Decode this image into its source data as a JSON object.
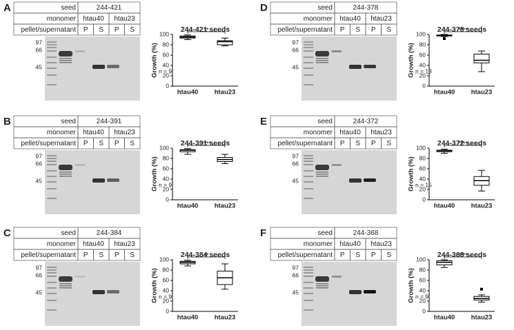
{
  "panels": [
    {
      "letter": "A",
      "table": {
        "rows": [
          [
            "seed",
            "244-421"
          ],
          [
            "monomer",
            "htau40",
            "htau23"
          ],
          [
            "pellet/supernatant",
            "P",
            "S",
            "P",
            "S"
          ]
        ]
      },
      "markers": [
        97,
        66,
        45
      ]
    },
    {
      "letter": "B",
      "table": {
        "rows": [
          [
            "seed",
            "244-391"
          ],
          [
            "monomer",
            "htau40",
            "htau23"
          ],
          [
            "pellet/supernatant",
            "P",
            "S",
            "P",
            "S"
          ]
        ]
      },
      "markers": [
        97,
        66,
        45
      ]
    },
    {
      "letter": "C",
      "table": {
        "rows": [
          [
            "seed",
            "244-384"
          ],
          [
            "monomer",
            "htau40",
            "htau23"
          ],
          [
            "pellet/supernatant",
            "P",
            "S",
            "P",
            "S"
          ]
        ]
      },
      "markers": [
        97,
        66,
        45
      ]
    },
    {
      "letter": "D",
      "table": {
        "rows": [
          [
            "seed",
            "244-378"
          ],
          [
            "monomer",
            "htau40",
            "htau23"
          ],
          [
            "pellet/supernatant",
            "P",
            "S",
            "P",
            "S"
          ]
        ]
      },
      "markers": [
        97,
        66,
        45
      ]
    },
    {
      "letter": "E",
      "table": {
        "rows": [
          [
            "seed",
            "244-372"
          ],
          [
            "monomer",
            "htau40",
            "htau23"
          ],
          [
            "pellet/supernatant",
            "P",
            "S",
            "P",
            "S"
          ]
        ]
      },
      "markers": [
        97,
        66,
        45
      ]
    },
    {
      "letter": "F",
      "table": {
        "rows": [
          [
            "seed",
            "244-368"
          ],
          [
            "monomer",
            "htau40",
            "htau23"
          ],
          [
            "pellet/supernatant",
            "P",
            "S",
            "P",
            "S"
          ]
        ]
      },
      "markers": [
        97,
        66,
        45
      ]
    }
  ],
  "chart_data": [
    {
      "type": "box",
      "title": "244-421 seeds",
      "ylabel": "Growth (%)",
      "categories": [
        "htau40",
        "htau23"
      ],
      "boxes": [
        {
          "min": 90,
          "q1": 93,
          "median": 95,
          "q3": 97,
          "max": 99,
          "outliers": []
        },
        {
          "min": 78,
          "q1": 80,
          "median": 86,
          "q3": 88,
          "max": 93,
          "outliers": []
        }
      ],
      "ylim": [
        0,
        100
      ],
      "yticks": [
        0,
        20,
        40,
        60,
        80,
        100
      ],
      "n_label": "n = 9",
      "significance": "**"
    },
    {
      "type": "box",
      "title": "244-391 seeds",
      "ylabel": "Growth (%)",
      "categories": [
        "htau40",
        "htau23"
      ],
      "boxes": [
        {
          "min": 88,
          "q1": 93,
          "median": 96,
          "q3": 97,
          "max": 99,
          "outliers": []
        },
        {
          "min": 70,
          "q1": 74,
          "median": 78,
          "q3": 82,
          "max": 88,
          "outliers": []
        }
      ],
      "ylim": [
        0,
        100
      ],
      "yticks": [
        0,
        20,
        40,
        60,
        80,
        100
      ],
      "n_label": "n = 9",
      "significance": "****"
    },
    {
      "type": "box",
      "title": "244-384 seeds",
      "ylabel": "Growth (%)",
      "categories": [
        "htau40",
        "htau23"
      ],
      "boxes": [
        {
          "min": 88,
          "q1": 92,
          "median": 95,
          "q3": 97,
          "max": 99,
          "outliers": []
        },
        {
          "min": 43,
          "q1": 52,
          "median": 65,
          "q3": 78,
          "max": 92,
          "outliers": []
        }
      ],
      "ylim": [
        0,
        100
      ],
      "yticks": [
        0,
        20,
        40,
        60,
        80,
        100
      ],
      "n_label": "n = 9",
      "significance": "**"
    },
    {
      "type": "box",
      "title": "244-378 seeds",
      "ylabel": "Growth (%)",
      "categories": [
        "htau40",
        "htau23"
      ],
      "boxes": [
        {
          "min": 96,
          "q1": 97,
          "median": 98,
          "q3": 99,
          "max": 100,
          "outliers": [
            92
          ]
        },
        {
          "min": 28,
          "q1": 45,
          "median": 50,
          "q3": 62,
          "max": 68,
          "outliers": []
        }
      ],
      "ylim": [
        0,
        100
      ],
      "yticks": [
        0,
        20,
        40,
        60,
        80,
        100
      ],
      "n_label": "n = 13",
      "significance": "****"
    },
    {
      "type": "box",
      "title": "244-372 seeds",
      "ylabel": "Growth (%)",
      "categories": [
        "htau40",
        "htau23"
      ],
      "boxes": [
        {
          "min": 90,
          "q1": 93,
          "median": 95,
          "q3": 96,
          "max": 98,
          "outliers": []
        },
        {
          "min": 17,
          "q1": 28,
          "median": 37,
          "q3": 45,
          "max": 57,
          "outliers": []
        }
      ],
      "ylim": [
        0,
        100
      ],
      "yticks": [
        0,
        20,
        40,
        60,
        80,
        100
      ],
      "n_label": "n = 15",
      "significance": "****"
    },
    {
      "type": "box",
      "title": "244-368 seeds",
      "ylabel": "Growth (%)",
      "categories": [
        "htau40",
        "htau23"
      ],
      "boxes": [
        {
          "min": 85,
          "q1": 90,
          "median": 95,
          "q3": 98,
          "max": 100,
          "outliers": []
        },
        {
          "min": 18,
          "q1": 22,
          "median": 25,
          "q3": 29,
          "max": 32,
          "outliers": [
            43
          ]
        }
      ],
      "ylim": [
        0,
        100
      ],
      "yticks": [
        0,
        20,
        40,
        60,
        80,
        100
      ],
      "n_label": "n = 9",
      "significance": "****"
    }
  ]
}
